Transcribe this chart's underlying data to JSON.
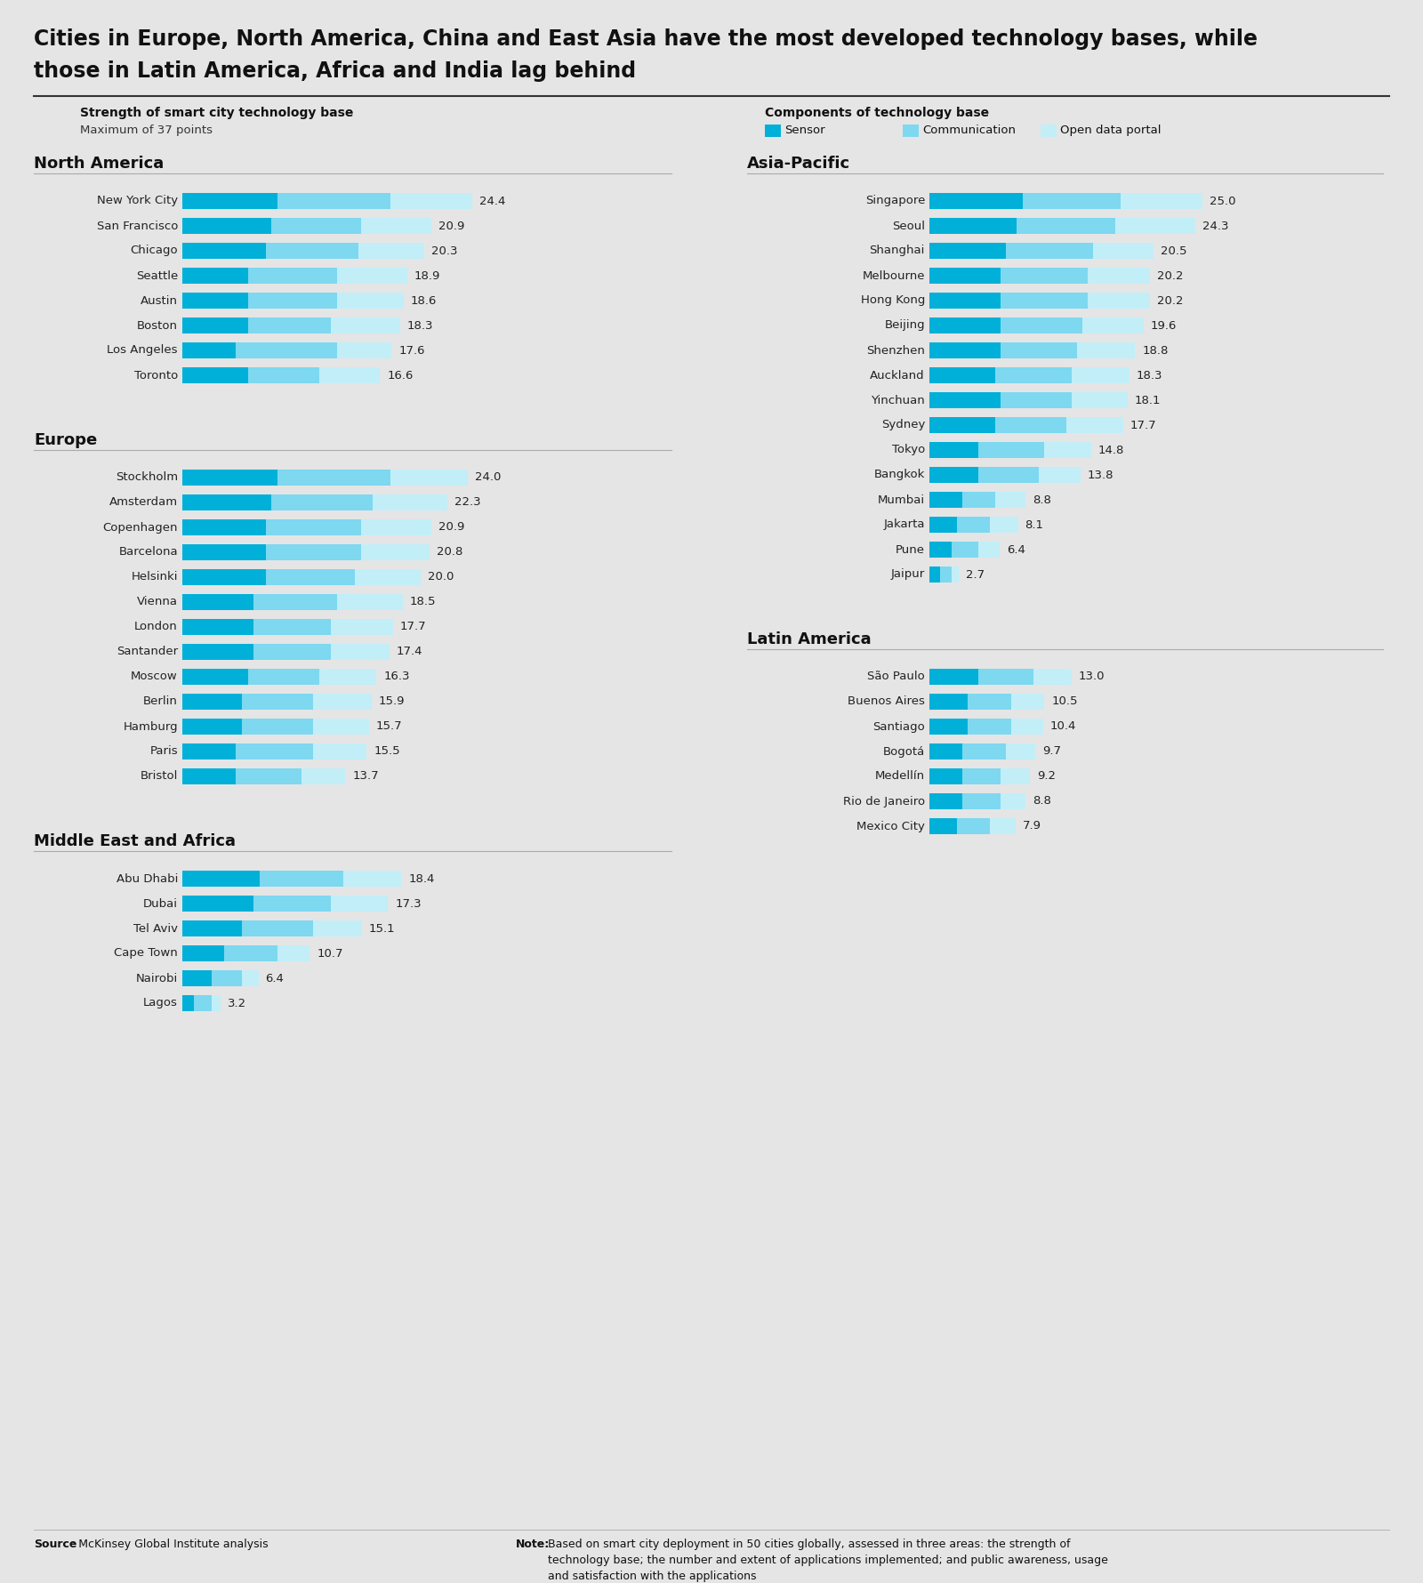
{
  "title_line1": "Cities in Europe, North America, China and East Asia have the most developed technology bases, while",
  "title_line2": "those in Latin America, Africa and India lag behind",
  "background_color": "#e5e5e5",
  "color_sensor": "#00b0d8",
  "color_communication": "#7dd8f0",
  "color_open_data": "#c2eef8",
  "max_value": 37,
  "bar_scale": 27,
  "regions": [
    {
      "name": "North America",
      "col": 0,
      "cities": [
        {
          "name": "New York City",
          "sensor": 8.0,
          "communication": 9.5,
          "open_data": 6.9,
          "total": 24.4
        },
        {
          "name": "San Francisco",
          "sensor": 7.5,
          "communication": 7.5,
          "open_data": 5.9,
          "total": 20.9
        },
        {
          "name": "Chicago",
          "sensor": 7.0,
          "communication": 7.8,
          "open_data": 5.5,
          "total": 20.3
        },
        {
          "name": "Seattle",
          "sensor": 5.5,
          "communication": 7.5,
          "open_data": 5.9,
          "total": 18.9
        },
        {
          "name": "Austin",
          "sensor": 5.5,
          "communication": 7.5,
          "open_data": 5.6,
          "total": 18.6
        },
        {
          "name": "Boston",
          "sensor": 5.5,
          "communication": 7.0,
          "open_data": 5.8,
          "total": 18.3
        },
        {
          "name": "Los Angeles",
          "sensor": 4.5,
          "communication": 8.5,
          "open_data": 4.6,
          "total": 17.6
        },
        {
          "name": "Toronto",
          "sensor": 5.5,
          "communication": 6.0,
          "open_data": 5.1,
          "total": 16.6
        }
      ]
    },
    {
      "name": "Europe",
      "col": 0,
      "cities": [
        {
          "name": "Stockholm",
          "sensor": 8.0,
          "communication": 9.5,
          "open_data": 6.5,
          "total": 24.0
        },
        {
          "name": "Amsterdam",
          "sensor": 7.5,
          "communication": 8.5,
          "open_data": 6.3,
          "total": 22.3
        },
        {
          "name": "Copenhagen",
          "sensor": 7.0,
          "communication": 8.0,
          "open_data": 5.9,
          "total": 20.9
        },
        {
          "name": "Barcelona",
          "sensor": 7.0,
          "communication": 8.0,
          "open_data": 5.8,
          "total": 20.8
        },
        {
          "name": "Helsinki",
          "sensor": 7.0,
          "communication": 7.5,
          "open_data": 5.5,
          "total": 20.0
        },
        {
          "name": "Vienna",
          "sensor": 6.0,
          "communication": 7.0,
          "open_data": 5.5,
          "total": 18.5
        },
        {
          "name": "London",
          "sensor": 6.0,
          "communication": 6.5,
          "open_data": 5.2,
          "total": 17.7
        },
        {
          "name": "Santander",
          "sensor": 6.0,
          "communication": 6.5,
          "open_data": 4.9,
          "total": 17.4
        },
        {
          "name": "Moscow",
          "sensor": 5.5,
          "communication": 6.0,
          "open_data": 4.8,
          "total": 16.3
        },
        {
          "name": "Berlin",
          "sensor": 5.0,
          "communication": 6.0,
          "open_data": 4.9,
          "total": 15.9
        },
        {
          "name": "Hamburg",
          "sensor": 5.0,
          "communication": 6.0,
          "open_data": 4.7,
          "total": 15.7
        },
        {
          "name": "Paris",
          "sensor": 4.5,
          "communication": 6.5,
          "open_data": 4.5,
          "total": 15.5
        },
        {
          "name": "Bristol",
          "sensor": 4.5,
          "communication": 5.5,
          "open_data": 3.7,
          "total": 13.7
        }
      ]
    },
    {
      "name": "Middle East and Africa",
      "col": 0,
      "cities": [
        {
          "name": "Abu Dhabi",
          "sensor": 6.5,
          "communication": 7.0,
          "open_data": 4.9,
          "total": 18.4
        },
        {
          "name": "Dubai",
          "sensor": 6.0,
          "communication": 6.5,
          "open_data": 4.8,
          "total": 17.3
        },
        {
          "name": "Tel Aviv",
          "sensor": 5.0,
          "communication": 6.0,
          "open_data": 4.1,
          "total": 15.1
        },
        {
          "name": "Cape Town",
          "sensor": 3.5,
          "communication": 4.5,
          "open_data": 2.7,
          "total": 10.7
        },
        {
          "name": "Nairobi",
          "sensor": 2.5,
          "communication": 2.5,
          "open_data": 1.4,
          "total": 6.4
        },
        {
          "name": "Lagos",
          "sensor": 1.0,
          "communication": 1.5,
          "open_data": 0.7,
          "total": 3.2
        }
      ]
    },
    {
      "name": "Asia-Pacific",
      "col": 1,
      "cities": [
        {
          "name": "Singapore",
          "sensor": 8.5,
          "communication": 9.0,
          "open_data": 7.5,
          "total": 25.0
        },
        {
          "name": "Seoul",
          "sensor": 8.0,
          "communication": 9.0,
          "open_data": 7.3,
          "total": 24.3
        },
        {
          "name": "Shanghai",
          "sensor": 7.0,
          "communication": 8.0,
          "open_data": 5.5,
          "total": 20.5
        },
        {
          "name": "Melbourne",
          "sensor": 6.5,
          "communication": 8.0,
          "open_data": 5.7,
          "total": 20.2
        },
        {
          "name": "Hong Kong",
          "sensor": 6.5,
          "communication": 8.0,
          "open_data": 5.7,
          "total": 20.2
        },
        {
          "name": "Beijing",
          "sensor": 6.5,
          "communication": 7.5,
          "open_data": 5.6,
          "total": 19.6
        },
        {
          "name": "Shenzhen",
          "sensor": 6.5,
          "communication": 7.0,
          "open_data": 5.3,
          "total": 18.8
        },
        {
          "name": "Auckland",
          "sensor": 6.0,
          "communication": 7.0,
          "open_data": 5.3,
          "total": 18.3
        },
        {
          "name": "Yinchuan",
          "sensor": 6.5,
          "communication": 6.5,
          "open_data": 5.1,
          "total": 18.1
        },
        {
          "name": "Sydney",
          "sensor": 6.0,
          "communication": 6.5,
          "open_data": 5.2,
          "total": 17.7
        },
        {
          "name": "Tokyo",
          "sensor": 4.5,
          "communication": 6.0,
          "open_data": 4.3,
          "total": 14.8
        },
        {
          "name": "Bangkok",
          "sensor": 4.5,
          "communication": 5.5,
          "open_data": 3.8,
          "total": 13.8
        },
        {
          "name": "Mumbai",
          "sensor": 3.0,
          "communication": 3.0,
          "open_data": 2.8,
          "total": 8.8
        },
        {
          "name": "Jakarta",
          "sensor": 2.5,
          "communication": 3.0,
          "open_data": 2.6,
          "total": 8.1
        },
        {
          "name": "Pune",
          "sensor": 2.0,
          "communication": 2.5,
          "open_data": 1.9,
          "total": 6.4
        },
        {
          "name": "Jaipur",
          "sensor": 1.0,
          "communication": 1.0,
          "open_data": 0.7,
          "total": 2.7
        }
      ]
    },
    {
      "name": "Latin America",
      "col": 1,
      "cities": [
        {
          "name": "São Paulo",
          "sensor": 4.5,
          "communication": 5.0,
          "open_data": 3.5,
          "total": 13.0
        },
        {
          "name": "Buenos Aires",
          "sensor": 3.5,
          "communication": 4.0,
          "open_data": 3.0,
          "total": 10.5
        },
        {
          "name": "Santiago",
          "sensor": 3.5,
          "communication": 4.0,
          "open_data": 2.9,
          "total": 10.4
        },
        {
          "name": "Bogotá",
          "sensor": 3.0,
          "communication": 4.0,
          "open_data": 2.7,
          "total": 9.7
        },
        {
          "name": "Medellín",
          "sensor": 3.0,
          "communication": 3.5,
          "open_data": 2.7,
          "total": 9.2
        },
        {
          "name": "Rio de Janeiro",
          "sensor": 3.0,
          "communication": 3.5,
          "open_data": 2.3,
          "total": 8.8
        },
        {
          "name": "Mexico City",
          "sensor": 2.5,
          "communication": 3.0,
          "open_data": 2.4,
          "total": 7.9
        }
      ]
    }
  ]
}
